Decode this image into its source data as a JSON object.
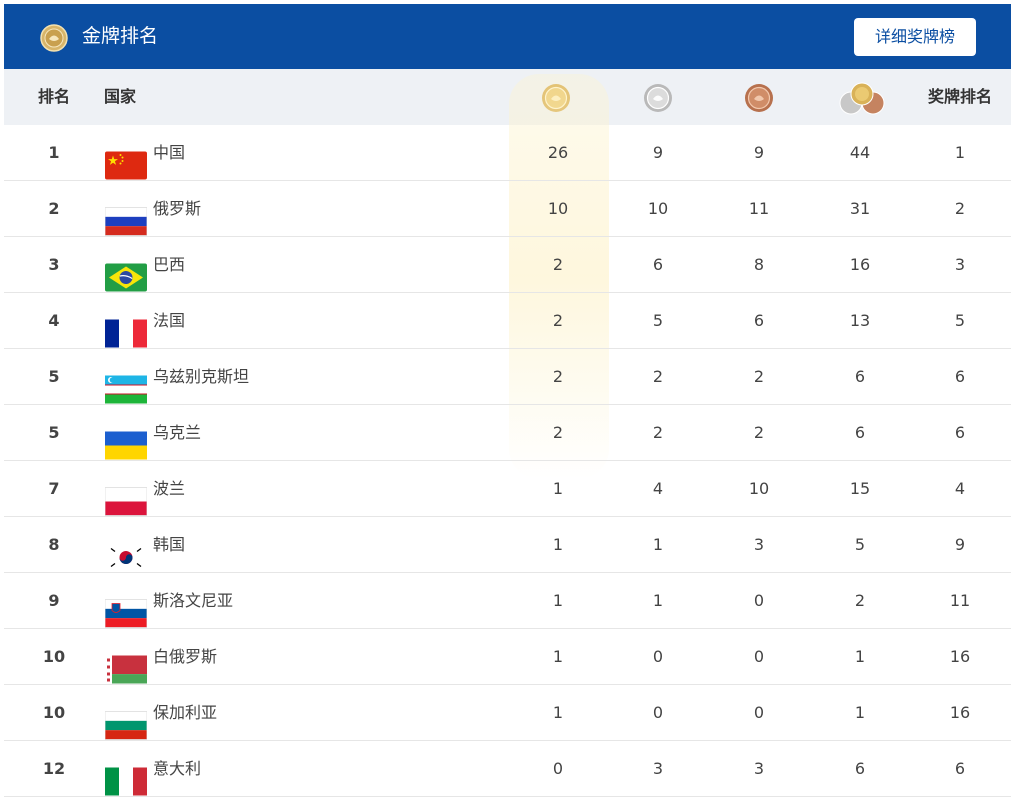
{
  "header": {
    "title": "金牌排名",
    "detail_button": "详细奖牌榜",
    "bg_color": "#0b4ea2"
  },
  "columns": {
    "rank": "排名",
    "country": "国家",
    "gold_icon": "gold-medal-icon",
    "silver_icon": "silver-medal-icon",
    "bronze_icon": "bronze-medal-icon",
    "total_icon": "total-medals-icon",
    "medal_rank": "奖牌排名"
  },
  "rows": [
    {
      "rank": "1",
      "flag": "china-flag-icon",
      "country": "中国",
      "gold": "26",
      "silver": "9",
      "bronze": "9",
      "total": "44",
      "medal_rank": "1"
    },
    {
      "rank": "2",
      "flag": "russia-flag-icon",
      "country": "俄罗斯",
      "gold": "10",
      "silver": "10",
      "bronze": "11",
      "total": "31",
      "medal_rank": "2"
    },
    {
      "rank": "3",
      "flag": "brazil-flag-icon",
      "country": "巴西",
      "gold": "2",
      "silver": "6",
      "bronze": "8",
      "total": "16",
      "medal_rank": "3"
    },
    {
      "rank": "4",
      "flag": "france-flag-icon",
      "country": "法国",
      "gold": "2",
      "silver": "5",
      "bronze": "6",
      "total": "13",
      "medal_rank": "5"
    },
    {
      "rank": "5",
      "flag": "uzbekistan-flag-icon",
      "country": "乌兹别克斯坦",
      "gold": "2",
      "silver": "2",
      "bronze": "2",
      "total": "6",
      "medal_rank": "6"
    },
    {
      "rank": "5",
      "flag": "ukraine-flag-icon",
      "country": "乌克兰",
      "gold": "2",
      "silver": "2",
      "bronze": "2",
      "total": "6",
      "medal_rank": "6"
    },
    {
      "rank": "7",
      "flag": "poland-flag-icon",
      "country": "波兰",
      "gold": "1",
      "silver": "4",
      "bronze": "10",
      "total": "15",
      "medal_rank": "4"
    },
    {
      "rank": "8",
      "flag": "korea-flag-icon",
      "country": "韩国",
      "gold": "1",
      "silver": "1",
      "bronze": "3",
      "total": "5",
      "medal_rank": "9"
    },
    {
      "rank": "9",
      "flag": "slovenia-flag-icon",
      "country": "斯洛文尼亚",
      "gold": "1",
      "silver": "1",
      "bronze": "0",
      "total": "2",
      "medal_rank": "11"
    },
    {
      "rank": "10",
      "flag": "belarus-flag-icon",
      "country": "白俄罗斯",
      "gold": "1",
      "silver": "0",
      "bronze": "0",
      "total": "1",
      "medal_rank": "16"
    },
    {
      "rank": "10",
      "flag": "bulgaria-flag-icon",
      "country": "保加利亚",
      "gold": "1",
      "silver": "0",
      "bronze": "0",
      "total": "1",
      "medal_rank": "16"
    },
    {
      "rank": "12",
      "flag": "italy-flag-icon",
      "country": "意大利",
      "gold": "0",
      "silver": "3",
      "bronze": "3",
      "total": "6",
      "medal_rank": "6"
    }
  ]
}
